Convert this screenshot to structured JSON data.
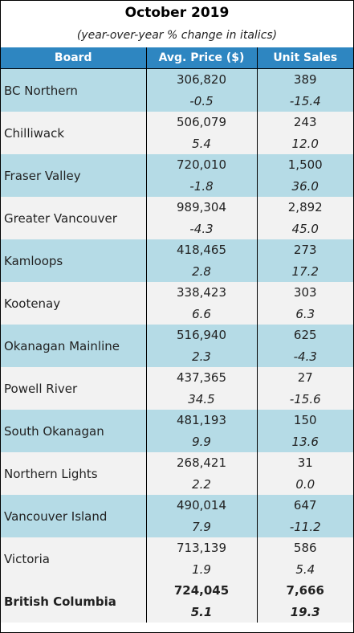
{
  "title": "October 2019",
  "subtitle": "(year-over-year % change in italics)",
  "columns": [
    "Board",
    "Avg. Price ($)",
    "Unit Sales"
  ],
  "rows": [
    {
      "board": "BC Northern",
      "price": "306,820",
      "price_chg": "-0.5",
      "units": "389",
      "units_chg": "-15.4"
    },
    {
      "board": "Chilliwack",
      "price": "506,079",
      "price_chg": "5.4",
      "units": "243",
      "units_chg": "12.0"
    },
    {
      "board": "Fraser Valley",
      "price": "720,010",
      "price_chg": "-1.8",
      "units": "1,500",
      "units_chg": "36.0"
    },
    {
      "board": "Greater Vancouver",
      "price": "989,304",
      "price_chg": "-4.3",
      "units": "2,892",
      "units_chg": "45.0"
    },
    {
      "board": "Kamloops",
      "price": "418,465",
      "price_chg": "2.8",
      "units": "273",
      "units_chg": "17.2"
    },
    {
      "board": "Kootenay",
      "price": "338,423",
      "price_chg": "6.6",
      "units": "303",
      "units_chg": "6.3"
    },
    {
      "board": "Okanagan Mainline",
      "price": "516,940",
      "price_chg": "2.3",
      "units": "625",
      "units_chg": "-4.3"
    },
    {
      "board": "Powell River",
      "price": "437,365",
      "price_chg": "34.5",
      "units": "27",
      "units_chg": "-15.6"
    },
    {
      "board": "South Okanagan",
      "price": "481,193",
      "price_chg": "9.9",
      "units": "150",
      "units_chg": "13.6"
    },
    {
      "board": "Northern Lights",
      "price": "268,421",
      "price_chg": "2.2",
      "units": "31",
      "units_chg": "0.0"
    },
    {
      "board": "Vancouver Island",
      "price": "490,014",
      "price_chg": "7.9",
      "units": "647",
      "units_chg": "-11.2"
    },
    {
      "board": "Victoria",
      "price": "713,139",
      "price_chg": "1.9",
      "units": "586",
      "units_chg": "5.4"
    }
  ],
  "total": {
    "board": "British Columbia",
    "price": "724,045",
    "price_chg": "5.1",
    "units": "7,666",
    "units_chg": "19.3"
  },
  "colors": {
    "header": "#2e86c1",
    "band": "#b5dbe6",
    "white_band": "#f2f2f2"
  }
}
